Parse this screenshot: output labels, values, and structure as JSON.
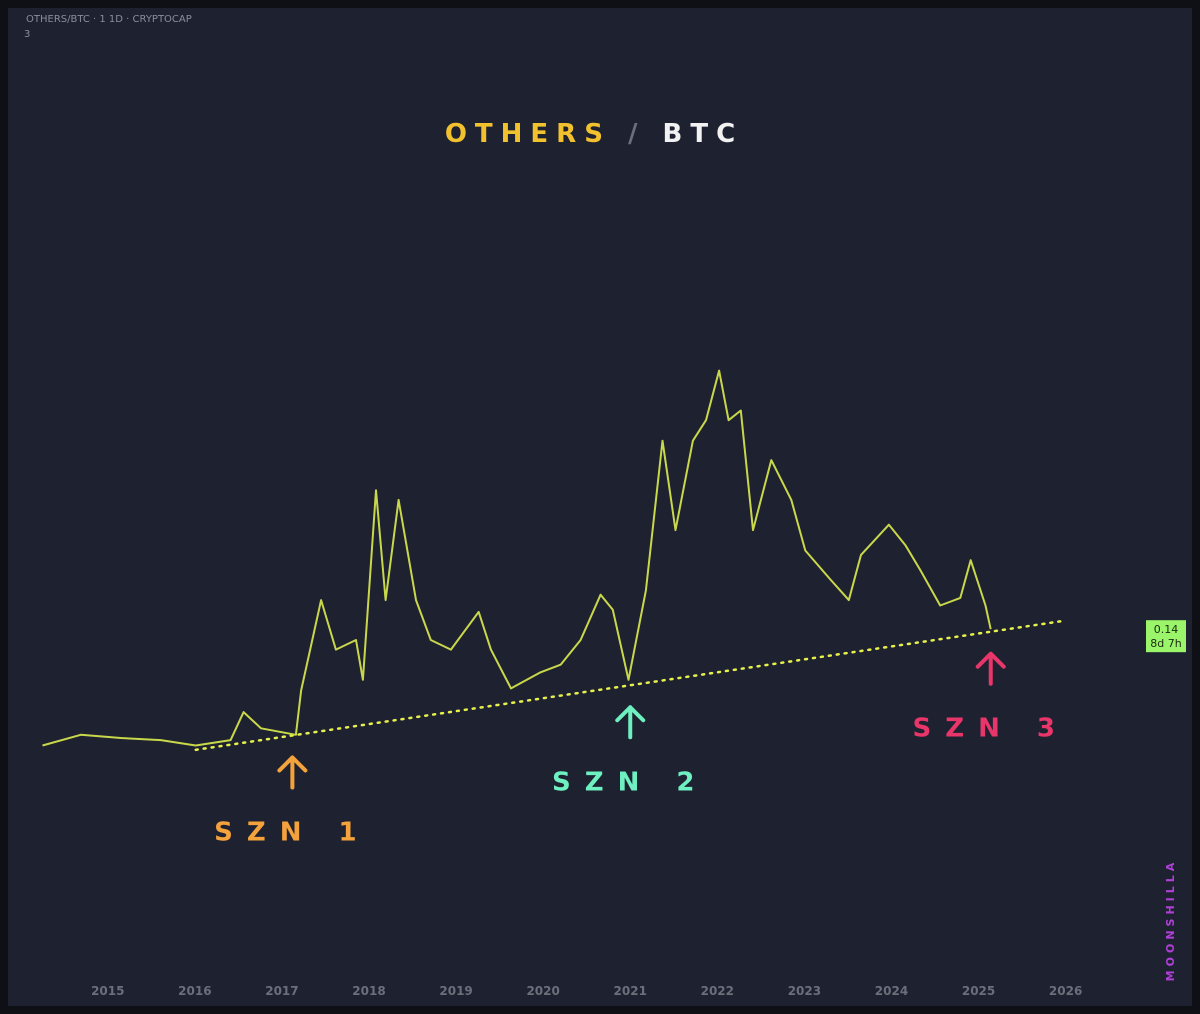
{
  "symbol_header": "OTHERS/BTC · 1 1D · CRYPTOCAP",
  "header_count": "3",
  "watermark": "MOONSHILLA",
  "chart_data": {
    "type": "line",
    "title": [
      "OTHERS",
      "/",
      "BTC"
    ],
    "title_colors": [
      "#f2c12e",
      "#6b6f7a",
      "#f2f2f2"
    ],
    "xlim": [
      2013.9,
      2026.9
    ],
    "xticks": [
      2015,
      2016,
      2017,
      2018,
      2019,
      2020,
      2021,
      2022,
      2023,
      2024,
      2025,
      2026
    ],
    "ylim": [
      0,
      0.66
    ],
    "series": [
      {
        "name": "OTHERS/BTC",
        "color": "#c9d84a",
        "x": [
          2014.25,
          2014.69,
          2015.15,
          2015.61,
          2016.01,
          2016.41,
          2016.56,
          2016.76,
          2017.16,
          2017.22,
          2017.45,
          2017.62,
          2017.85,
          2017.93,
          2018.08,
          2018.19,
          2018.34,
          2018.54,
          2018.71,
          2018.94,
          2019.26,
          2019.4,
          2019.63,
          2019.97,
          2020.2,
          2020.43,
          2020.66,
          2020.8,
          2020.98,
          2021.18,
          2021.37,
          2021.52,
          2021.72,
          2021.87,
          2022.02,
          2022.13,
          2022.27,
          2022.41,
          2022.62,
          2022.85,
          2023.01,
          2023.3,
          2023.51,
          2023.65,
          2023.97,
          2024.16,
          2024.33,
          2024.56,
          2024.79,
          2024.91,
          2025.08,
          2025.14
        ],
        "values": [
          0.032,
          0.042,
          0.039,
          0.037,
          0.032,
          0.037,
          0.063,
          0.048,
          0.042,
          0.083,
          0.167,
          0.121,
          0.13,
          0.093,
          0.269,
          0.167,
          0.26,
          0.167,
          0.13,
          0.121,
          0.156,
          0.121,
          0.085,
          0.1,
          0.107,
          0.13,
          0.172,
          0.158,
          0.093,
          0.176,
          0.315,
          0.232,
          0.315,
          0.334,
          0.38,
          0.334,
          0.343,
          0.232,
          0.297,
          0.26,
          0.213,
          0.186,
          0.167,
          0.209,
          0.237,
          0.218,
          0.195,
          0.162,
          0.169,
          0.204,
          0.162,
          0.14
        ]
      }
    ],
    "last_countdown": "8d 7h",
    "trendline": {
      "x": [
        2016.01,
        2026
      ],
      "values": [
        0.028,
        0.148
      ],
      "color": "#e8f04a"
    },
    "annotations": [
      {
        "text": "SZN 1",
        "x": 2017.12,
        "color": "#f4a23c"
      },
      {
        "text": "SZN 2",
        "x": 2021.0,
        "color": "#6ef0c0"
      },
      {
        "text": "SZN 3",
        "x": 2025.14,
        "color": "#e8356a"
      }
    ]
  }
}
